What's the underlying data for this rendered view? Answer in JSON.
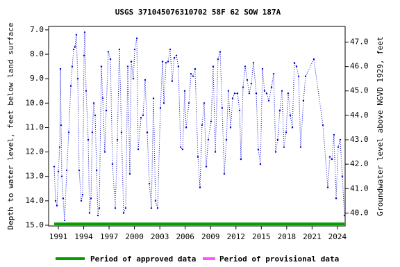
{
  "chart_data": {
    "type": "line",
    "title": "USGS 371045076310702 58F 62 SOW 187A",
    "y_label": "Depth to water level, feet below land surface",
    "y2_label": "Groundwater level above NGVD 1929, feet",
    "color": "#0000cc",
    "x": [
      1990.51,
      1990.67,
      1990.84,
      1991.0,
      1991.16,
      1991.25,
      1991.33,
      1991.41,
      1991.57,
      1991.74,
      1991.99,
      1992.23,
      1992.48,
      1992.64,
      1992.81,
      1992.97,
      1993.13,
      1993.3,
      1993.46,
      1993.71,
      1993.87,
      1994.04,
      1994.12,
      1994.28,
      1994.53,
      1994.69,
      1994.86,
      1995.02,
      1995.19,
      1995.35,
      1995.52,
      1995.68,
      1995.84,
      1996.09,
      1996.25,
      1996.5,
      1996.66,
      1996.91,
      1997.16,
      1997.4,
      1997.73,
      1997.98,
      1998.22,
      1998.47,
      1998.72,
      1998.96,
      1999.21,
      1999.46,
      1999.62,
      1999.87,
      2000.03,
      2000.28,
      2000.44,
      2000.77,
      2001.02,
      2001.26,
      2001.51,
      2001.76,
      2002.0,
      2002.25,
      2002.49,
      2002.74,
      2003.07,
      2003.32,
      2003.48,
      2003.73,
      2003.97,
      2004.22,
      2004.46,
      2004.71,
      2004.96,
      2005.2,
      2005.45,
      2005.7,
      2005.94,
      2006.11,
      2006.44,
      2006.68,
      2006.93,
      2007.17,
      2007.5,
      2007.75,
      2007.99,
      2008.24,
      2008.49,
      2008.73,
      2009.06,
      2009.31,
      2009.56,
      2009.88,
      2010.13,
      2010.37,
      2010.62,
      2010.87,
      2011.11,
      2011.36,
      2011.61,
      2011.85,
      2012.18,
      2012.43,
      2012.59,
      2012.84,
      2013.09,
      2013.33,
      2013.58,
      2013.82,
      2014.07,
      2014.4,
      2014.64,
      2014.89,
      2015.14,
      2015.38,
      2015.63,
      2015.88,
      2016.21,
      2016.45,
      2016.7,
      2016.94,
      2017.19,
      2017.44,
      2017.68,
      2017.93,
      2018.17,
      2018.42,
      2018.67,
      2018.91,
      2019.16,
      2019.41,
      2019.65,
      2019.98,
      2020.23,
      2021.21,
      2022.28,
      2022.86,
      2023.1,
      2023.35,
      2023.59,
      2023.84,
      2024.09,
      2024.33,
      2024.58,
      2024.83
    ],
    "values": [
      12.6,
      14.0,
      14.2,
      12.8,
      11.8,
      8.6,
      10.9,
      13.0,
      13.9,
      14.8,
      12.75,
      11.2,
      9.3,
      8.5,
      7.8,
      7.7,
      7.2,
      9.0,
      12.75,
      14.0,
      13.75,
      8.05,
      7.1,
      9.5,
      11.5,
      14.5,
      13.9,
      11.2,
      10.0,
      10.5,
      12.75,
      14.6,
      14.3,
      8.5,
      9.8,
      12.0,
      10.3,
      7.9,
      8.2,
      12.5,
      14.3,
      11.5,
      7.8,
      11.2,
      14.5,
      14.3,
      8.5,
      12.9,
      8.3,
      9.0,
      7.8,
      7.35,
      11.9,
      10.6,
      10.5,
      9.05,
      11.2,
      13.3,
      14.3,
      9.8,
      14.0,
      14.3,
      10.2,
      8.3,
      10.0,
      8.35,
      8.3,
      7.8,
      9.1,
      8.15,
      8.05,
      8.5,
      11.8,
      11.9,
      9.5,
      11.0,
      10.0,
      8.8,
      8.9,
      8.6,
      12.2,
      13.45,
      10.9,
      10.0,
      12.6,
      11.5,
      10.75,
      8.5,
      12.0,
      8.2,
      7.9,
      10.2,
      12.9,
      11.5,
      9.5,
      11.0,
      9.8,
      9.6,
      9.6,
      10.3,
      12.3,
      9.35,
      8.5,
      9.05,
      9.6,
      9.2,
      8.35,
      9.6,
      11.9,
      12.5,
      8.6,
      9.5,
      9.6,
      9.9,
      9.35,
      8.8,
      12.0,
      11.5,
      10.3,
      9.5,
      11.8,
      11.2,
      9.6,
      10.5,
      11.0,
      8.35,
      8.5,
      8.9,
      11.8,
      9.9,
      8.9,
      8.2,
      10.9,
      13.45,
      12.2,
      12.3,
      11.3,
      13.9,
      11.8,
      11.5,
      13.0,
      14.6
    ],
    "xlim": [
      1989.85,
      2024.91
    ],
    "xticks": [
      1991,
      1994,
      1997,
      2000,
      2003,
      2006,
      2009,
      2012,
      2015,
      2018,
      2021,
      2024
    ],
    "ylim": [
      6.86,
      15.03
    ],
    "y_inverted": true,
    "yticks": [
      {
        "value": 7,
        "label": "7.0"
      },
      {
        "value": 8,
        "label": "8.0"
      },
      {
        "value": 9,
        "label": "9.0"
      },
      {
        "value": 10,
        "label": "10.0"
      },
      {
        "value": 11,
        "label": "11.0"
      },
      {
        "value": 12,
        "label": "12.0"
      },
      {
        "value": 13,
        "label": "13.0"
      },
      {
        "value": 14,
        "label": "14.0"
      },
      {
        "value": 15,
        "label": "15.0"
      }
    ],
    "y2lim": [
      47.64,
      39.47
    ],
    "y2ticks": [
      {
        "value": 40,
        "label": "40.0"
      },
      {
        "value": 41,
        "label": "41.0"
      },
      {
        "value": 42,
        "label": "42.0"
      },
      {
        "value": 43,
        "label": "43.0"
      },
      {
        "value": 44,
        "label": "44.0"
      },
      {
        "value": 45,
        "label": "45.0"
      },
      {
        "value": 46,
        "label": "46.0"
      },
      {
        "value": 47,
        "label": "47.0"
      }
    ],
    "approved_range": [
      1990.51,
      2024.83
    ],
    "legend": [
      {
        "label": "Period of approved data",
        "color": "#00a000"
      },
      {
        "label": "Period of provisional data",
        "color": "#ff55ff"
      }
    ]
  }
}
